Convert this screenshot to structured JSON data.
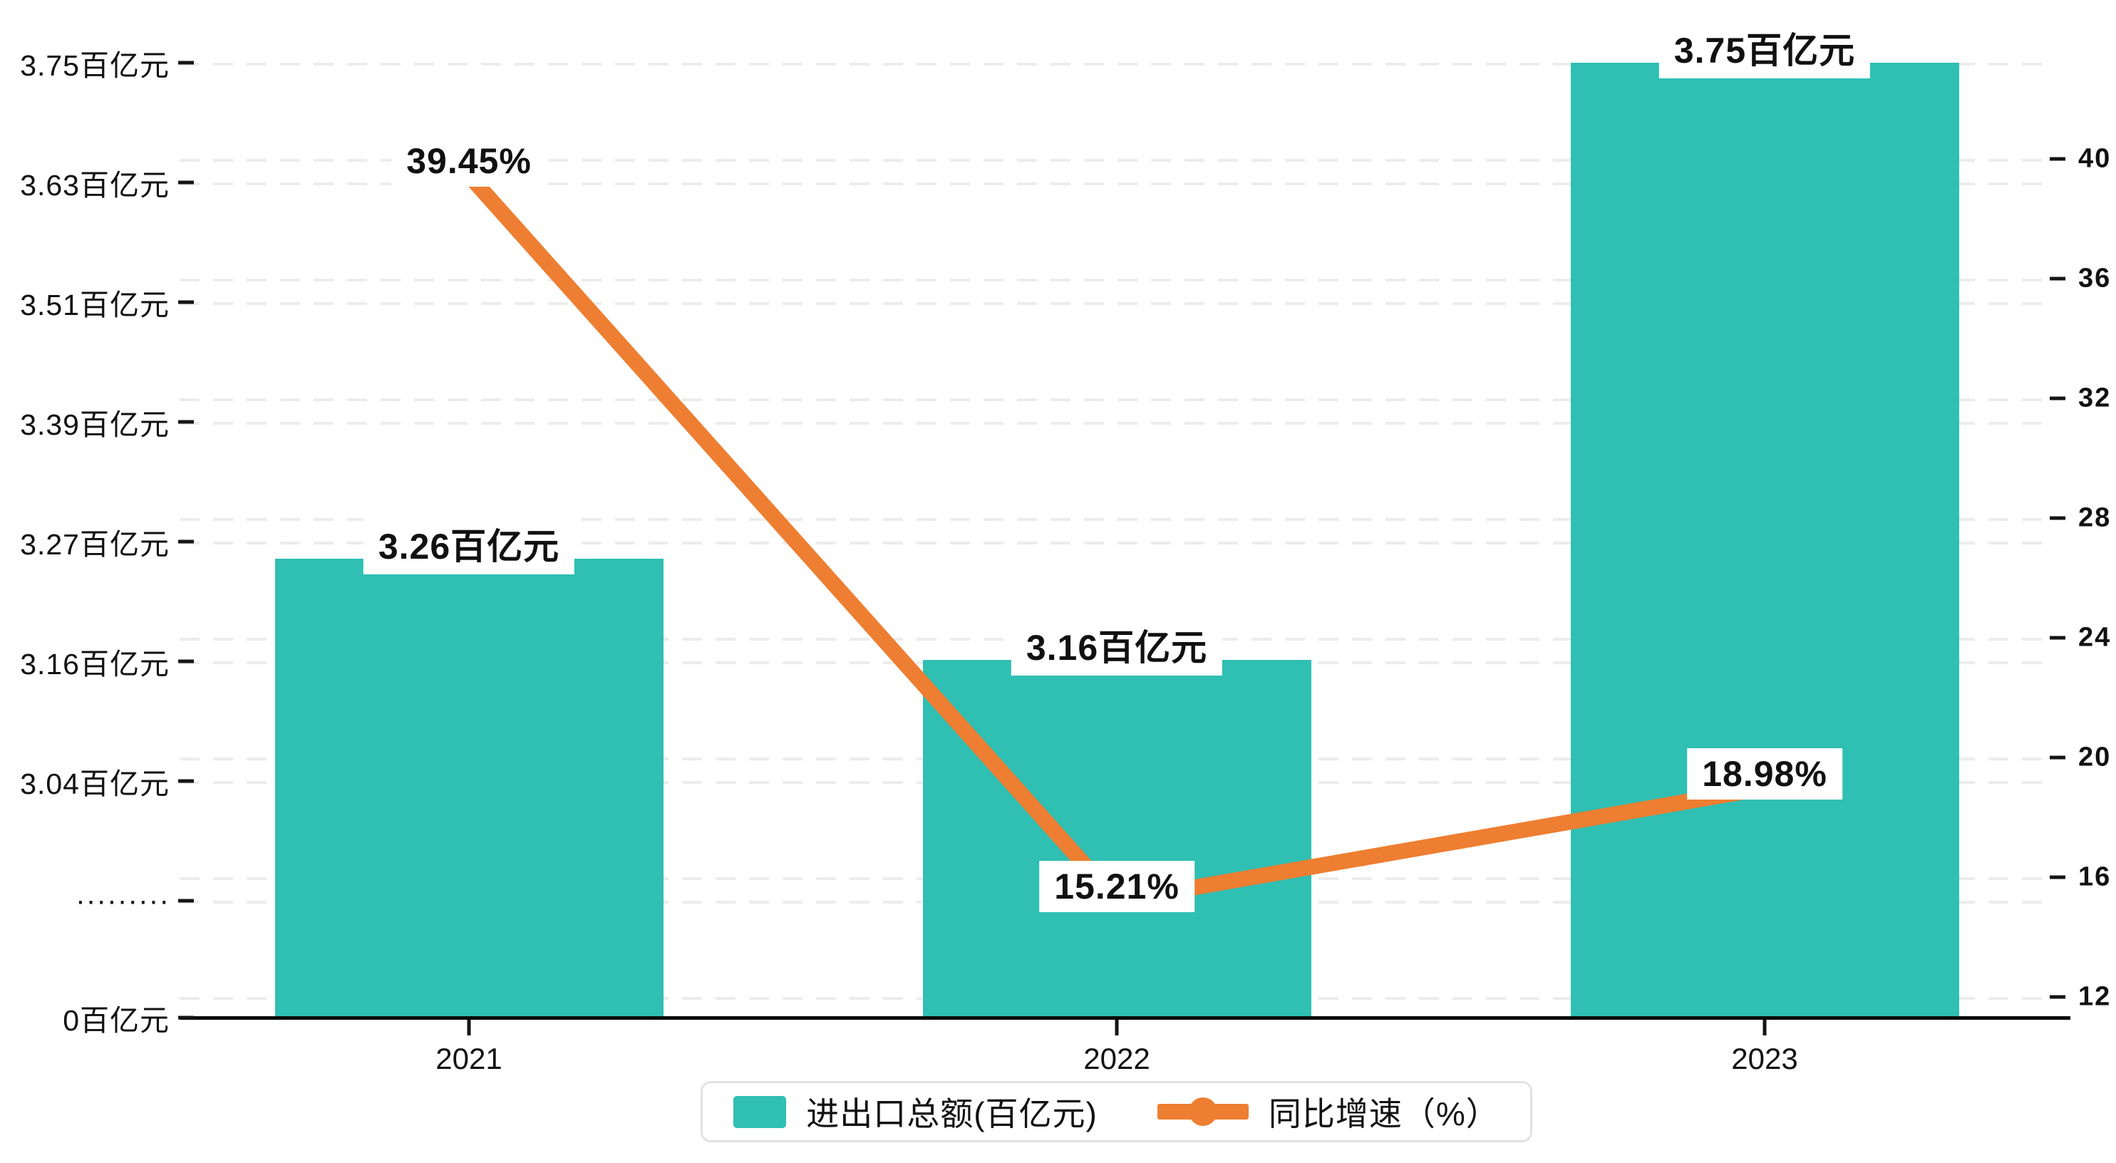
{
  "chart_data": {
    "type": "combo-bar-line",
    "categories": [
      "2021",
      "2022",
      "2023"
    ],
    "series": [
      {
        "name": "进出口总额(百亿元)",
        "type": "bar",
        "axis": "left",
        "values": [
          3.26,
          3.16,
          3.75
        ],
        "data_labels": [
          "3.26百亿元",
          "3.16百亿元",
          "3.75百亿元"
        ],
        "color": "#2FBFB3"
      },
      {
        "name": "同比增速（%）",
        "type": "line",
        "axis": "right",
        "values": [
          39.45,
          15.21,
          18.98
        ],
        "data_labels": [
          "39.45%",
          "15.21%",
          "18.98%"
        ],
        "color": "#EE7E31"
      }
    ],
    "left_axis": {
      "tick_labels": [
        "3.75百亿元",
        "3.63百亿元",
        "3.51百亿元",
        "3.39百亿元",
        "3.27百亿元",
        "3.16百亿元",
        "3.04百亿元",
        "·········",
        "0百亿元"
      ],
      "tick_values": [
        3.75,
        3.63,
        3.51,
        3.39,
        3.27,
        3.16,
        3.04,
        null,
        0
      ],
      "axis_break": true
    },
    "right_axis": {
      "tick_labels": [
        "40",
        "36",
        "32",
        "28",
        "24",
        "20",
        "16",
        "12"
      ],
      "tick_values": [
        40,
        36,
        32,
        28,
        24,
        20,
        16,
        12
      ],
      "max": 40,
      "min": 12,
      "step": 4
    },
    "x_axis": {
      "labels": [
        "2021",
        "2022",
        "2023"
      ]
    },
    "legend": {
      "position": "bottom-center",
      "items": [
        {
          "label": "进出口总额(百亿元)",
          "marker": "bar-swatch",
          "color": "#2FBFB3"
        },
        {
          "label": "同比增速（%）",
          "marker": "line-dot",
          "color": "#EE7E31"
        }
      ]
    },
    "grid": "dashed",
    "colors": {
      "bar": "#2FBFB3",
      "line": "#EE7E31",
      "grid": "#ececec",
      "axis": "#141414",
      "text": "#111111",
      "background": "#ffffff"
    }
  }
}
